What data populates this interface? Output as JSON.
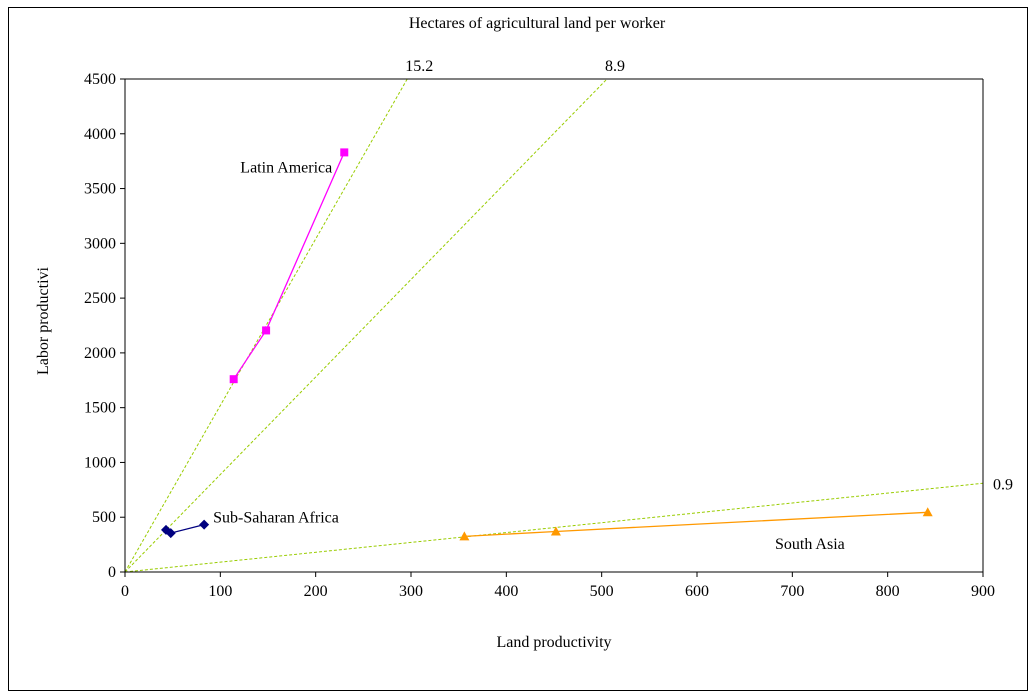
{
  "chart_data": {
    "type": "scatter",
    "title": "Hectares of agricultural land per worker",
    "xlabel": "Land productivity",
    "ylabel": "Labor productivi",
    "xlim": [
      0,
      900
    ],
    "ylim": [
      0,
      4500
    ],
    "x_ticks": [
      0,
      100,
      200,
      300,
      400,
      500,
      600,
      700,
      800,
      900
    ],
    "y_ticks": [
      0,
      500,
      1000,
      1500,
      2000,
      2500,
      3000,
      3500,
      4000,
      4500
    ],
    "grid": false,
    "legend": "none",
    "series": [
      {
        "name": "Latin America",
        "marker": "square",
        "color": "#ff00ff",
        "points": [
          [
            114,
            1760
          ],
          [
            148,
            2205
          ],
          [
            230,
            3830
          ]
        ]
      },
      {
        "name": "Sub-Saharan Africa",
        "marker": "diamond",
        "color": "#000080",
        "points": [
          [
            43,
            385
          ],
          [
            48,
            355
          ],
          [
            83,
            432
          ]
        ]
      },
      {
        "name": "South Asia",
        "marker": "triangle",
        "color": "#ff9900",
        "points": [
          [
            356,
            325
          ],
          [
            452,
            370
          ],
          [
            842,
            545
          ]
        ]
      }
    ],
    "reference_lines": [
      {
        "label": "15.2",
        "slope": 15.2,
        "color": "#99cc00"
      },
      {
        "label": "8.9",
        "slope": 8.9,
        "color": "#99cc00"
      },
      {
        "label": "0.9",
        "slope": 0.9,
        "color": "#99cc00"
      }
    ]
  }
}
